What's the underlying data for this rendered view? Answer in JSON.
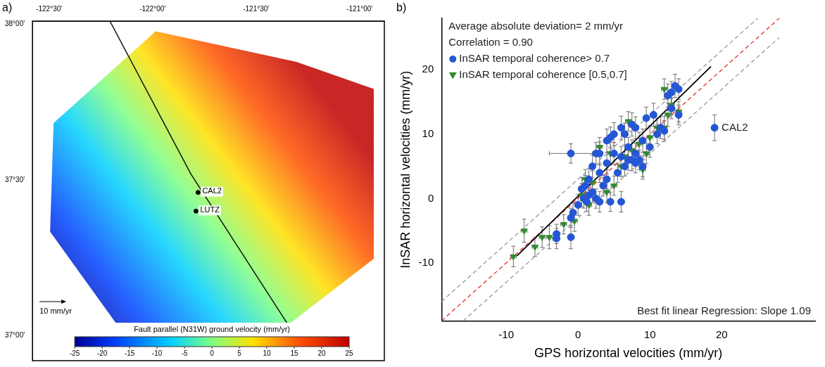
{
  "chart_data": [
    {
      "type": "map",
      "panel_label": "a)",
      "xlim": [
        -122.58,
        -120.88
      ],
      "xticks": [
        {
          "value": -122.5,
          "label": "-122°30'"
        },
        {
          "value": -122,
          "label": "-122°00'"
        },
        {
          "value": -121.5,
          "label": "-121°30'"
        },
        {
          "value": -121,
          "label": "-121°00'"
        }
      ],
      "ylim": [
        36.92,
        38.01
      ],
      "yticks": [
        {
          "value": 37,
          "label": "37°00'"
        },
        {
          "value": 37.5,
          "label": "37°30'"
        },
        {
          "value": 38,
          "label": "38°00'"
        }
      ],
      "stations": {
        "names": [
          "CAL2",
          "LUTZ"
        ],
        "x": [
          -121.78,
          -121.79
        ],
        "values": [
          37.46,
          37.4
        ]
      },
      "scale_label": "10 mm/yr",
      "colorbar": {
        "label": "Fault parallel (N31W) ground velocity (mm/yr)",
        "range": [
          -25,
          25
        ],
        "ticks": [
          -25,
          -20,
          -15,
          -10,
          -5,
          0,
          5,
          10,
          15,
          20,
          25
        ]
      }
    },
    {
      "type": "scatter",
      "panel_label": "b)",
      "x_label": "GPS horizontal velocities (mm/yr)",
      "y_label": "InSAR horizontal velocities (mm/yr)",
      "xlim": [
        -19,
        33
      ],
      "xticks": [
        -10,
        0,
        10,
        20
      ],
      "ylim": [
        -19,
        28
      ],
      "yticks": [
        -10,
        0,
        10,
        20
      ],
      "grid": false,
      "legend": "upper left",
      "stats": [
        "Average absolute deviation= 2 mm/yr",
        "Correlation = 0.90"
      ],
      "note": "Best fit linear Regression: Slope 1.09",
      "annotations": [
        {
          "text": "CAL2",
          "x": 19,
          "y": 11
        }
      ],
      "series": [
        {
          "name": "InSAR temporal coherence> 0.7",
          "type": "scatter",
          "color": "#2456d6",
          "marker": "circle",
          "x": [
            -3,
            -3,
            -1,
            -1,
            -0.7,
            -1,
            0,
            0.5,
            0.8,
            1,
            1.2,
            1.5,
            1.5,
            2,
            2,
            2.5,
            2.5,
            3,
            3,
            3,
            3.5,
            4,
            4,
            4,
            4.5,
            4.5,
            5,
            5,
            5.5,
            6,
            6,
            6.5,
            6.5,
            7,
            7,
            7.5,
            7.5,
            8,
            8,
            8,
            8.5,
            9,
            9,
            9.5,
            10,
            10.5,
            11,
            11.5,
            12,
            12.5,
            13,
            13,
            13.5,
            14,
            14,
            6,
            19
          ],
          "values": [
            -5.5,
            -6.2,
            -6,
            -3,
            -2.2,
            7,
            -1,
            1.5,
            0,
            2,
            -0.5,
            3,
            0.5,
            1,
            5,
            0,
            7,
            -0.5,
            4,
            7,
            2,
            3,
            5.5,
            9,
            -0.5,
            9.5,
            7,
            10,
            4,
            6.5,
            11,
            5,
            10,
            6,
            8,
            6,
            11.5,
            5.5,
            7,
            11,
            6,
            5,
            9,
            12.5,
            8,
            13,
            10,
            11,
            10.5,
            16,
            14,
            16.5,
            17.5,
            17,
            13,
            -0.5,
            11
          ],
          "x_error": [
            0.4,
            0.4,
            0.4,
            0.4,
            0.4,
            3,
            0.4,
            0.4,
            0.4,
            0.4,
            0.4,
            0.4,
            0.4,
            0.4,
            0.4,
            0.4,
            0.4,
            0.4,
            0.4,
            0.4,
            0.4,
            0.4,
            0.4,
            0.4,
            0.4,
            0.4,
            0.4,
            0.4,
            0.4,
            0.4,
            0.4,
            0.4,
            0.4,
            0.4,
            0.4,
            0.4,
            0.4,
            0.4,
            0.4,
            0.4,
            0.4,
            0.4,
            0.4,
            0.4,
            0.4,
            0.4,
            0.4,
            0.4,
            0.4,
            0.4,
            0.4,
            0.4,
            0.4,
            0.4,
            0.4,
            0.4,
            0.4
          ],
          "y_error": [
            1.5,
            1.6,
            1.8,
            1.5,
            1.5,
            1.5,
            1.6,
            1.8,
            1.5,
            1.6,
            1.5,
            1.7,
            1.5,
            1.6,
            1.8,
            1.5,
            1.7,
            1.6,
            1.5,
            1.8,
            1.6,
            1.5,
            1.7,
            1.8,
            1.5,
            1.6,
            1.7,
            1.8,
            1.5,
            1.6,
            1.8,
            1.5,
            1.7,
            1.6,
            1.5,
            1.7,
            1.8,
            1.5,
            1.6,
            1.7,
            1.5,
            1.6,
            1.8,
            1.7,
            1.6,
            1.8,
            1.5,
            1.7,
            1.6,
            1.8,
            1.6,
            1.7,
            1.8,
            1.6,
            1.5,
            1.6,
            2.0
          ]
        },
        {
          "name": "InSAR temporal coherence [0.5,0.7]",
          "type": "scatter",
          "color": "#2e8b2e",
          "marker": "triangle_down",
          "x": [
            -9,
            -7.5,
            -6,
            -5,
            -4,
            -2,
            -0.5,
            0.5,
            1,
            1.5,
            2,
            3,
            4,
            4.5,
            5,
            6,
            6.5,
            7,
            7.5,
            8.5,
            9,
            9.5,
            10,
            11,
            12,
            12.5,
            13,
            14,
            12
          ],
          "values": [
            -9,
            -5,
            -7.5,
            -6,
            -6,
            -4,
            -3.5,
            0.5,
            3,
            -1,
            2.5,
            8,
            1,
            7,
            2,
            5,
            6.5,
            12,
            7.5,
            8.5,
            4.5,
            7,
            9.5,
            11,
            17,
            13,
            14.5,
            13.5,
            11
          ],
          "x_error": [
            0.4,
            0.4,
            0.4,
            0.4,
            0.4,
            0.4,
            0.4,
            0.4,
            0.4,
            0.4,
            0.4,
            0.4,
            0.4,
            0.4,
            0.4,
            0.4,
            0.4,
            0.4,
            0.4,
            0.4,
            0.4,
            0.4,
            0.4,
            0.4,
            0.4,
            0.4,
            0.4,
            0.4,
            0.4
          ],
          "y_error": [
            1.6,
            1.8,
            1.5,
            1.6,
            1.8,
            1.5,
            1.6,
            1.8,
            1.5,
            1.6,
            1.8,
            1.5,
            1.6,
            1.8,
            1.5,
            1.6,
            1.8,
            1.5,
            1.6,
            1.8,
            1.5,
            1.6,
            1.8,
            1.5,
            1.6,
            1.8,
            1.5,
            1.6,
            1.8
          ]
        },
        {
          "type": "line",
          "color": "#000000",
          "line_style": "solid",
          "x": [
            -8.5,
            18.5
          ],
          "values": [
            -8.9,
            20.5
          ]
        },
        {
          "type": "line",
          "color": "#e0302a",
          "line_style": "dashed",
          "x": [
            -19,
            28
          ],
          "values": [
            -19,
            28
          ]
        },
        {
          "type": "line",
          "color": "#999999",
          "line_style": "dashed",
          "x": [
            -19,
            25
          ],
          "values": [
            -16,
            28
          ]
        },
        {
          "type": "line",
          "color": "#999999",
          "line_style": "dashed",
          "x": [
            -16,
            28
          ],
          "values": [
            -19,
            25
          ]
        }
      ]
    }
  ]
}
